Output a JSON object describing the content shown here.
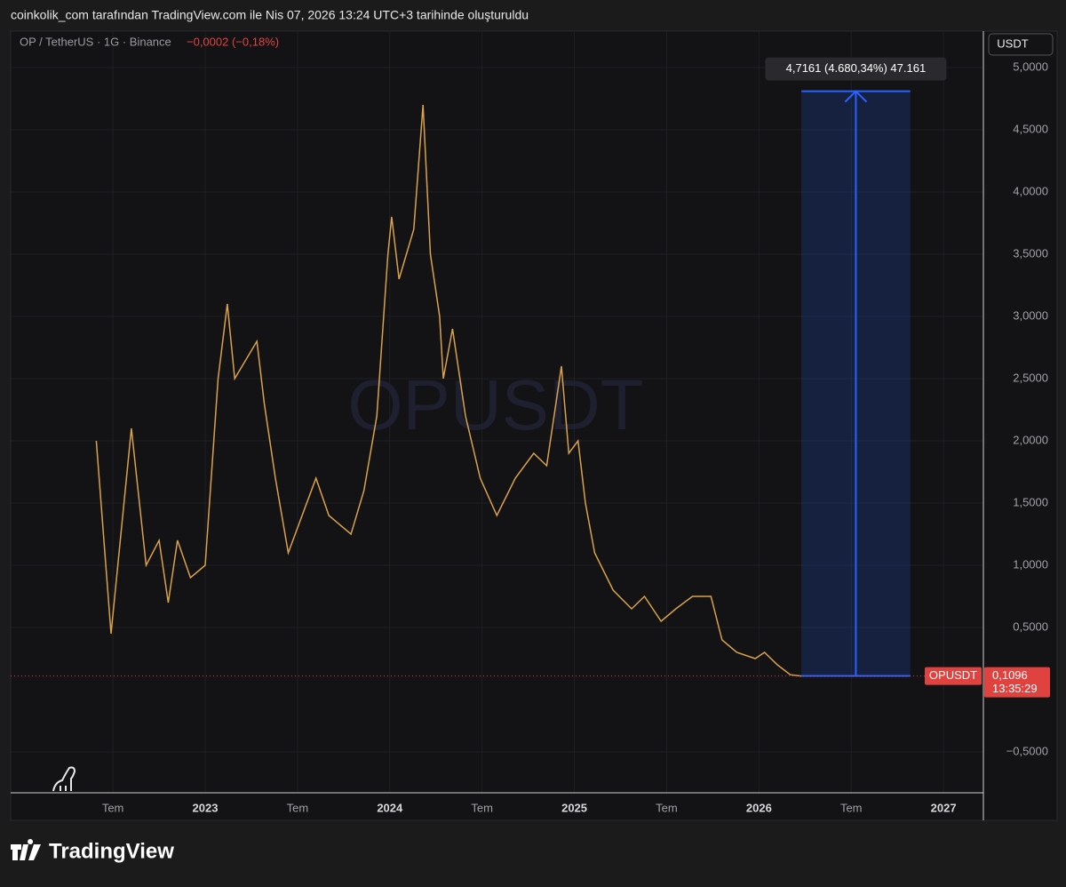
{
  "header": "coinkolik_com tarafından TradingView.com ile Nis 07, 2026 13:24 UTC+3 tarihinde oluşturuldu",
  "footer": "TradingView",
  "chart_data": {
    "type": "line",
    "title": "OP / TetherUS · 1G · Binance",
    "change": "−0,0002 (−0,18%)",
    "watermark": "OPUSDT",
    "currency": "USDT",
    "color": "#d9a24a",
    "x": [
      2022.41,
      2022.49,
      2022.6,
      2022.68,
      2022.75,
      2022.8,
      2022.85,
      2022.92,
      2023.0,
      2023.07,
      2023.12,
      2023.16,
      2023.28,
      2023.32,
      2023.38,
      2023.45,
      2023.6,
      2023.67,
      2023.79,
      2023.86,
      2023.93,
      2023.99,
      2024.01,
      2024.05,
      2024.13,
      2024.18,
      2024.22,
      2024.27,
      2024.29,
      2024.34,
      2024.41,
      2024.49,
      2024.58,
      2024.68,
      2024.78,
      2024.85,
      2024.9,
      2024.93,
      2024.97,
      2025.02,
      2025.06,
      2025.11,
      2025.21,
      2025.31,
      2025.38,
      2025.47,
      2025.55,
      2025.64,
      2025.74,
      2025.8,
      2025.88,
      2025.98,
      2026.03,
      2026.1,
      2026.17,
      2026.23
    ],
    "values": [
      2.0,
      0.45,
      2.1,
      1.0,
      1.2,
      0.7,
      1.2,
      0.9,
      1.0,
      2.5,
      3.1,
      2.5,
      2.8,
      2.3,
      1.7,
      1.1,
      1.7,
      1.4,
      1.25,
      1.6,
      2.2,
      3.5,
      3.8,
      3.3,
      3.7,
      4.7,
      3.5,
      3.0,
      2.5,
      2.9,
      2.2,
      1.7,
      1.4,
      1.7,
      1.9,
      1.8,
      2.3,
      2.6,
      1.9,
      2.0,
      1.5,
      1.1,
      0.8,
      0.65,
      0.75,
      0.55,
      0.65,
      0.75,
      0.75,
      0.4,
      0.3,
      0.25,
      0.3,
      0.2,
      0.12,
      0.11
    ],
    "xlim": [
      2021.946,
      2027.216
    ],
    "ylim": [
      -0.829,
      5.293
    ],
    "xticks": [
      {
        "value": 2022.5,
        "label": "Tem"
      },
      {
        "value": 2023,
        "label": "2023"
      },
      {
        "value": 2023.5,
        "label": "Tem"
      },
      {
        "value": 2024,
        "label": "2024"
      },
      {
        "value": 2024.5,
        "label": "Tem"
      },
      {
        "value": 2025,
        "label": "2025"
      },
      {
        "value": 2025.5,
        "label": "Tem"
      },
      {
        "value": 2026,
        "label": "2026"
      },
      {
        "value": 2026.5,
        "label": "Tem"
      },
      {
        "value": 2027,
        "label": "2027"
      }
    ],
    "yticks": [
      {
        "value": -0.5,
        "label": "−0,5000"
      },
      {
        "value": 0.5,
        "label": "0,5000"
      },
      {
        "value": 1,
        "label": "1,0000"
      },
      {
        "value": 1.5,
        "label": "1,5000"
      },
      {
        "value": 2,
        "label": "2,0000"
      },
      {
        "value": 2.5,
        "label": "2,5000"
      },
      {
        "value": 3,
        "label": "3,0000"
      },
      {
        "value": 3.5,
        "label": "3,5000"
      },
      {
        "value": 4,
        "label": "4,0000"
      },
      {
        "value": 4.5,
        "label": "4,5000"
      },
      {
        "value": 5,
        "label": "5,0000"
      }
    ],
    "grid": true,
    "last": {
      "value": 0.1096,
      "label": "0,1096",
      "symbol": "OPUSDT",
      "countdown": "13:35:29",
      "color": "#e0433f"
    },
    "measure": {
      "label": "4,7161 (4.680,34%) 47.161",
      "x": [
        2026.23,
        2026.82
      ],
      "y": [
        0.11,
        4.81
      ],
      "color": "#2962ff"
    }
  }
}
